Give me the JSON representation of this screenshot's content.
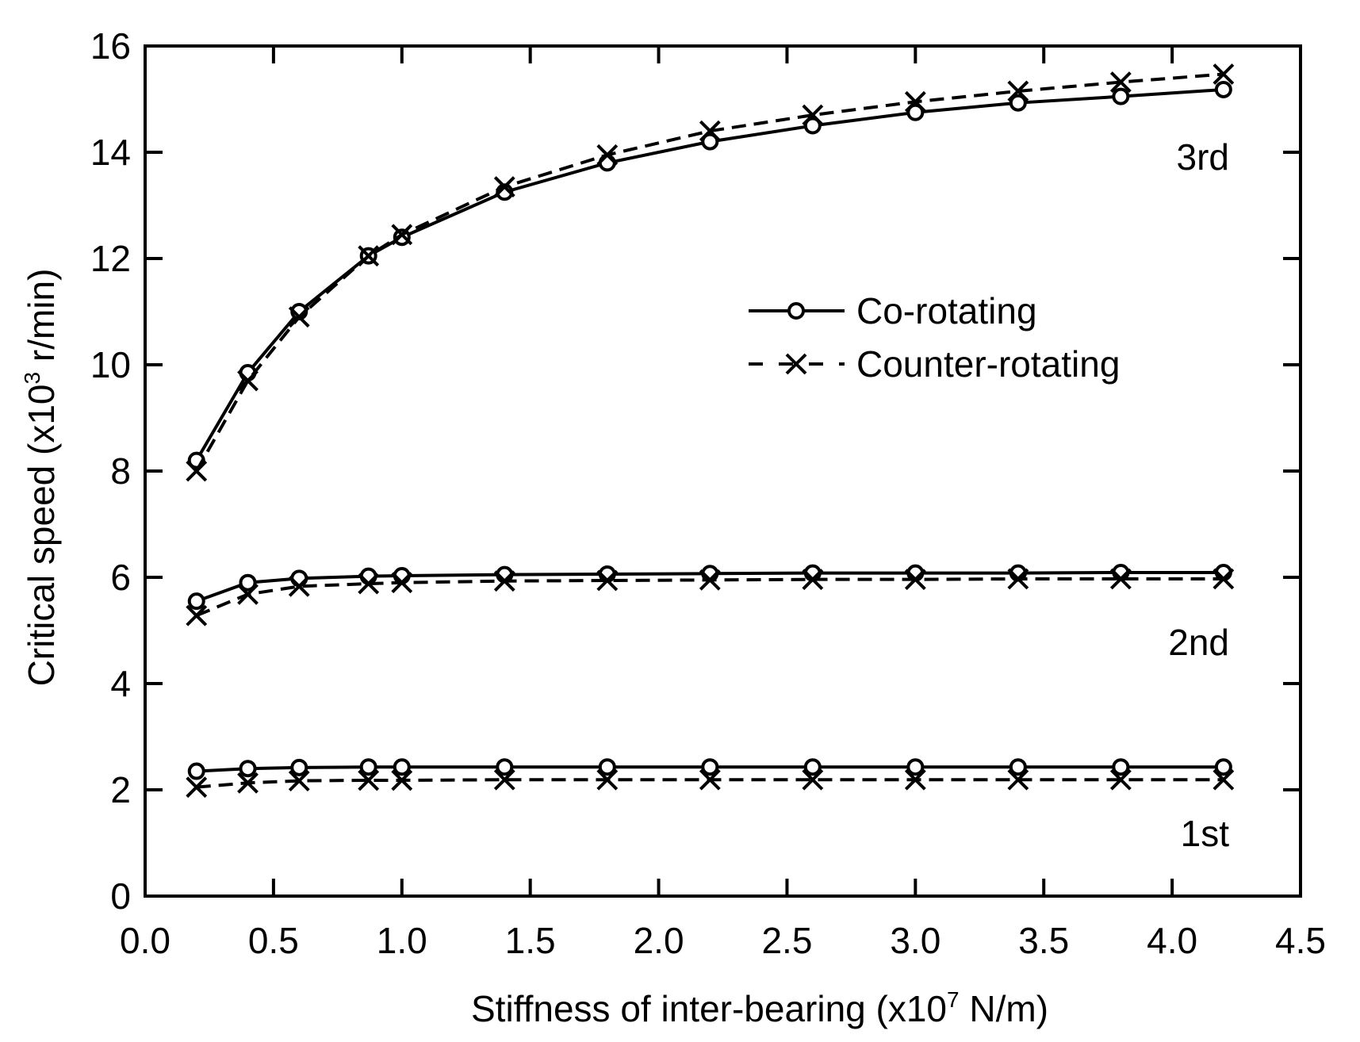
{
  "chart_data": {
    "type": "line",
    "title": "",
    "xlabel": "Stiffness of inter-bearing (x10",
    "xlabel_sup": "7",
    "xlabel_tail": " N/m)",
    "ylabel": "Critical speed (x10",
    "ylabel_sup": "3",
    "ylabel_tail": " r/min)",
    "xlim": [
      0,
      4.5
    ],
    "ylim": [
      0,
      16
    ],
    "xticks": [
      "0.0",
      "0.5",
      "1.0",
      "1.5",
      "2.0",
      "2.5",
      "3.0",
      "3.5",
      "4.0",
      "4.5"
    ],
    "yticks": [
      "0",
      "2",
      "4",
      "6",
      "8",
      "10",
      "12",
      "14",
      "16"
    ],
    "grid": false,
    "legend": {
      "placement": "center-right",
      "entries": [
        "Co-rotating",
        "Counter-rotating"
      ]
    },
    "annotations": [
      "3rd",
      "2nd",
      "1st"
    ],
    "x": [
      0.2,
      0.4,
      0.6,
      0.87,
      1.0,
      1.4,
      1.8,
      2.2,
      2.6,
      3.0,
      3.4,
      3.8,
      4.2
    ],
    "series": [
      {
        "name": "Co-rotating",
        "mode": "3rd",
        "style": "solid",
        "marker": "circle",
        "values": [
          8.2,
          9.85,
          11.0,
          12.05,
          12.4,
          13.25,
          13.8,
          14.2,
          14.5,
          14.75,
          14.93,
          15.05,
          15.18
        ]
      },
      {
        "name": "Counter-rotating",
        "mode": "3rd",
        "style": "dashed",
        "marker": "x",
        "values": [
          8.0,
          9.7,
          10.9,
          12.05,
          12.45,
          13.35,
          13.95,
          14.4,
          14.7,
          14.95,
          15.15,
          15.32,
          15.47
        ]
      },
      {
        "name": "Co-rotating",
        "mode": "2nd",
        "style": "solid",
        "marker": "circle",
        "values": [
          5.55,
          5.9,
          5.98,
          6.02,
          6.03,
          6.05,
          6.06,
          6.07,
          6.08,
          6.08,
          6.08,
          6.09,
          6.09
        ]
      },
      {
        "name": "Counter-rotating",
        "mode": "2nd",
        "style": "dashed",
        "marker": "x",
        "values": [
          5.28,
          5.68,
          5.83,
          5.88,
          5.9,
          5.93,
          5.94,
          5.95,
          5.96,
          5.96,
          5.97,
          5.97,
          5.97
        ]
      },
      {
        "name": "Co-rotating",
        "mode": "1st",
        "style": "solid",
        "marker": "circle",
        "values": [
          2.35,
          2.4,
          2.42,
          2.43,
          2.43,
          2.43,
          2.43,
          2.43,
          2.43,
          2.43,
          2.43,
          2.43,
          2.43
        ]
      },
      {
        "name": "Counter-rotating",
        "mode": "1st",
        "style": "dashed",
        "marker": "x",
        "values": [
          2.05,
          2.13,
          2.17,
          2.18,
          2.18,
          2.19,
          2.19,
          2.19,
          2.19,
          2.19,
          2.19,
          2.19,
          2.19
        ]
      }
    ]
  }
}
